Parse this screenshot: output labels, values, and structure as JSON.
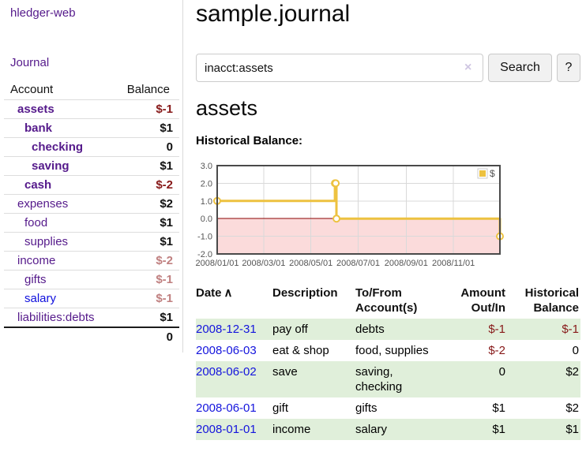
{
  "app": {
    "brand": "hledger-web"
  },
  "sidebar": {
    "journal_link": "Journal",
    "accounts_table": {
      "headers": {
        "account": "Account",
        "balance": "Balance"
      },
      "rows": [
        {
          "name": "assets",
          "balance": "$-1"
        },
        {
          "name": "bank",
          "balance": "$1"
        },
        {
          "name": "checking",
          "balance": "0"
        },
        {
          "name": "saving",
          "balance": "$1"
        },
        {
          "name": "cash",
          "balance": "$-2"
        },
        {
          "name": "expenses",
          "balance": "$2"
        },
        {
          "name": "food",
          "balance": "$1"
        },
        {
          "name": "supplies",
          "balance": "$1"
        },
        {
          "name": "income",
          "balance": "$-2"
        },
        {
          "name": "gifts",
          "balance": "$-1"
        },
        {
          "name": "salary",
          "balance": "$-1"
        },
        {
          "name": "liabilities:debts",
          "balance": "$1"
        }
      ],
      "total": "0"
    }
  },
  "main": {
    "title": "sample.journal",
    "search": {
      "value": "inacct:assets",
      "clear_icon": "×",
      "button": "Search",
      "help_button": "?"
    },
    "account_heading": "assets",
    "chart_title": "Historical Balance:"
  },
  "chart_data": {
    "type": "line",
    "title": "Historical Balance of assets",
    "step": true,
    "series": [
      {
        "name": "$",
        "color": "#edc240",
        "points": [
          [
            "2008-01-01",
            1
          ],
          [
            "2008-06-01",
            2
          ],
          [
            "2008-06-02",
            2
          ],
          [
            "2008-06-03",
            0
          ],
          [
            "2008-12-31",
            -1
          ]
        ]
      }
    ],
    "x_range": [
      "2008-01-01",
      "2008-12-31"
    ],
    "x_ticks": [
      {
        "date": "2008-01-01",
        "label": "2008/01/01"
      },
      {
        "date": "2008-03-01",
        "label": "2008/03/01"
      },
      {
        "date": "2008-05-01",
        "label": "2008/05/01"
      },
      {
        "date": "2008-07-01",
        "label": "2008/07/01"
      },
      {
        "date": "2008-09-01",
        "label": "2008/09/01"
      },
      {
        "date": "2008-11-01",
        "label": "2008/11/01"
      }
    ],
    "y_ticks": [
      {
        "v": 3,
        "label": "3.0"
      },
      {
        "v": 2,
        "label": "2.0"
      },
      {
        "v": 1,
        "label": "1.0"
      },
      {
        "v": 0,
        "label": "0.0"
      },
      {
        "v": -1,
        "label": "-1.0"
      },
      {
        "v": -2,
        "label": "-2.0"
      }
    ],
    "ylim": [
      -2,
      3
    ],
    "grid": true,
    "legend": {
      "label": "$",
      "position": "top-right"
    },
    "colors": {
      "line": "#edc240",
      "marker_fill": "#ffffff",
      "zero_line": "#8b0000",
      "negative_region": "#fbdbdb",
      "gridline": "#d9d9d9",
      "border": "#4a4a4a",
      "tick_text": "#545454"
    }
  },
  "register": {
    "headers": {
      "date": "Date",
      "sort_icon": "∧",
      "description": "Description",
      "accounts": "To/From Account(s)",
      "amount": "Amount Out/In",
      "balance": "Historical Balance"
    },
    "rows": [
      {
        "date": "2008-12-31",
        "description": "pay off",
        "accounts": "debts",
        "amount": "$-1",
        "balance": "$-1"
      },
      {
        "date": "2008-06-03",
        "description": "eat & shop",
        "accounts": "food, supplies",
        "amount": "$-2",
        "balance": "0"
      },
      {
        "date": "2008-06-02",
        "description": "save",
        "accounts": "saving, checking",
        "amount": "0",
        "balance": "$2"
      },
      {
        "date": "2008-06-01",
        "description": "gift",
        "accounts": "gifts",
        "amount": "$1",
        "balance": "$2"
      },
      {
        "date": "2008-01-01",
        "description": "income",
        "accounts": "salary",
        "amount": "$1",
        "balance": "$1"
      }
    ]
  },
  "colors": {
    "link_purple": "#551a8b",
    "link_blue": "#1414dd",
    "negative_strong": "#871919",
    "negative_soft": "#c08080",
    "row_stripe_green": "#e0efda",
    "chart_line_yellow": "#edc240"
  }
}
